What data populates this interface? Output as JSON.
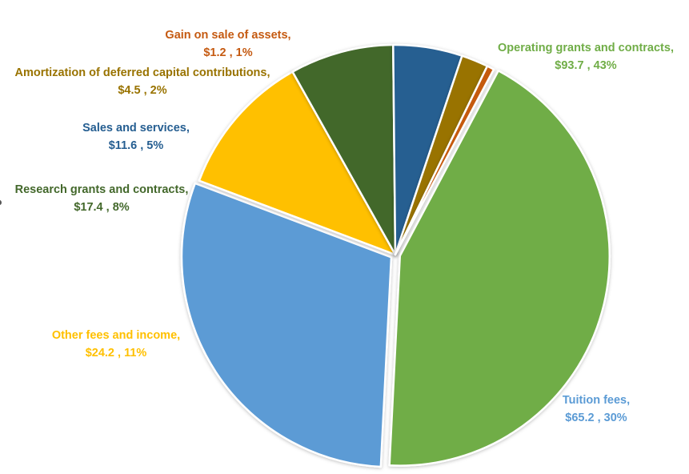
{
  "chart_data": {
    "type": "pie",
    "title": "",
    "slices": [
      {
        "label": "Operating grants and contracts,",
        "value_text": "$93.7 , 43%",
        "value": 93.7,
        "percent": 43,
        "color": "#70AD47"
      },
      {
        "label": "Tuition fees,",
        "value_text": "$65.2 , 30%",
        "value": 65.2,
        "percent": 30,
        "color": "#5B9BD5"
      },
      {
        "label": "Other fees and income,",
        "value_text": "$24.2 , 11%",
        "value": 24.2,
        "percent": 11,
        "color": "#FFC000"
      },
      {
        "label": "Research grants and contracts,",
        "value_text": "$17.4 , 8%",
        "value": 17.4,
        "percent": 8,
        "color": "#43682B"
      },
      {
        "label": "Sales and services,",
        "value_text": "$11.6 , 5%",
        "value": 11.6,
        "percent": 5,
        "color": "#255E91"
      },
      {
        "label": "Amortization of deferred capital contributions,",
        "value_text": "$4.5 , 2%",
        "value": 4.5,
        "percent": 2,
        "color": "#997300"
      },
      {
        "label": "Gain on sale of assets,",
        "value_text": "$1.2 , 1%",
        "value": 1.2,
        "percent": 1,
        "color": "#C55A11"
      }
    ],
    "label_colors": [
      "#70AD47",
      "#5B9BD5",
      "#FFC000",
      "#43682B",
      "#255E91",
      "#997300",
      "#C55A11"
    ]
  }
}
